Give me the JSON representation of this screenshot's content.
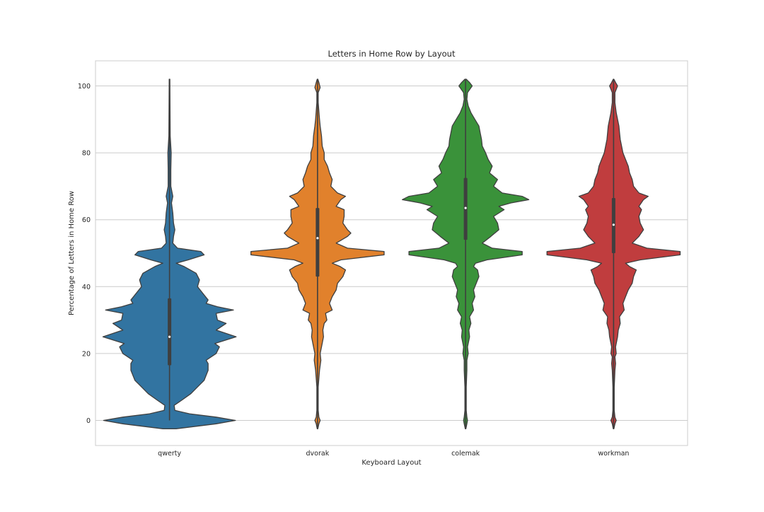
{
  "chart_data": {
    "type": "violin",
    "title": "Letters in Home Row by Layout",
    "xlabel": "Keyboard Layout",
    "ylabel": "Percentage of Letters in Home Row",
    "ylim": [
      -7.5,
      107.5
    ],
    "yticks": [
      0,
      20,
      40,
      60,
      80,
      100
    ],
    "grid": true,
    "categories": [
      "qwerty",
      "dvorak",
      "colemak",
      "workman"
    ],
    "colors": [
      "#3274a1",
      "#e1812c",
      "#3a923a",
      "#c03d3e"
    ],
    "box": {
      "qwerty": {
        "q1": 16.5,
        "median": 25,
        "q3": 36.5,
        "whisker_low": 0,
        "whisker_high": 102
      },
      "dvorak": {
        "q1": 43,
        "median": 54.5,
        "q3": 63.5,
        "whisker_low": -2.5,
        "whisker_high": 102
      },
      "colemak": {
        "q1": 54,
        "median": 63.5,
        "q3": 72.5,
        "whisker_low": -2.5,
        "whisker_high": 102
      },
      "workman": {
        "q1": 50,
        "median": 58.5,
        "q3": 66.5,
        "whisker_low": -2.5,
        "whisker_high": 102
      }
    },
    "density_profiles": {
      "qwerty": [
        [
          -2.5,
          0.1
        ],
        [
          -1,
          0.7
        ],
        [
          0,
          0.99
        ],
        [
          1,
          0.7
        ],
        [
          2,
          0.3
        ],
        [
          3,
          0.08
        ],
        [
          4.5,
          0.07
        ],
        [
          6,
          0.18
        ],
        [
          8,
          0.32
        ],
        [
          10,
          0.42
        ],
        [
          12,
          0.52
        ],
        [
          15,
          0.58
        ],
        [
          17,
          0.58
        ],
        [
          18,
          0.55
        ],
        [
          20,
          0.7
        ],
        [
          22,
          0.75
        ],
        [
          23,
          0.68
        ],
        [
          25,
          1.0
        ],
        [
          26,
          0.85
        ],
        [
          27,
          0.7
        ],
        [
          29,
          0.85
        ],
        [
          30,
          0.72
        ],
        [
          32,
          0.7
        ],
        [
          33,
          0.96
        ],
        [
          34,
          0.72
        ],
        [
          35,
          0.55
        ],
        [
          36,
          0.58
        ],
        [
          38,
          0.5
        ],
        [
          40,
          0.42
        ],
        [
          42,
          0.45
        ],
        [
          44,
          0.4
        ],
        [
          46,
          0.22
        ],
        [
          47,
          0.1
        ],
        [
          48,
          0.28
        ],
        [
          49.5,
          0.52
        ],
        [
          50.5,
          0.47
        ],
        [
          51.5,
          0.12
        ],
        [
          53,
          0.05
        ],
        [
          55,
          0.06
        ],
        [
          57,
          0.08
        ],
        [
          59,
          0.06
        ],
        [
          62,
          0.05
        ],
        [
          65,
          0.03
        ],
        [
          67,
          0.05
        ],
        [
          70,
          0.02
        ],
        [
          75,
          0.02
        ],
        [
          80,
          0.025
        ],
        [
          85,
          0.01
        ],
        [
          102,
          0.005
        ]
      ],
      "dvorak": [
        [
          -2.5,
          0.005
        ],
        [
          -1,
          0.02
        ],
        [
          0,
          0.04
        ],
        [
          1,
          0.02
        ],
        [
          3,
          0.01
        ],
        [
          10,
          0.01
        ],
        [
          15,
          0.03
        ],
        [
          18,
          0.05
        ],
        [
          20,
          0.04
        ],
        [
          22,
          0.06
        ],
        [
          25,
          0.09
        ],
        [
          27,
          0.08
        ],
        [
          29,
          0.1
        ],
        [
          30,
          0.14
        ],
        [
          32,
          0.12
        ],
        [
          33,
          0.22
        ],
        [
          35,
          0.18
        ],
        [
          37,
          0.22
        ],
        [
          39,
          0.28
        ],
        [
          41,
          0.3
        ],
        [
          43,
          0.38
        ],
        [
          45,
          0.42
        ],
        [
          46,
          0.34
        ],
        [
          47,
          0.22
        ],
        [
          48,
          0.35
        ],
        [
          49.5,
          1.0
        ],
        [
          50.5,
          1.0
        ],
        [
          51.5,
          0.45
        ],
        [
          53,
          0.28
        ],
        [
          55,
          0.45
        ],
        [
          56,
          0.5
        ],
        [
          57,
          0.45
        ],
        [
          59,
          0.38
        ],
        [
          61,
          0.4
        ],
        [
          63,
          0.4
        ],
        [
          64,
          0.28
        ],
        [
          66,
          0.35
        ],
        [
          67,
          0.42
        ],
        [
          68,
          0.3
        ],
        [
          70,
          0.2
        ],
        [
          72,
          0.22
        ],
        [
          74,
          0.18
        ],
        [
          76,
          0.15
        ],
        [
          78,
          0.1
        ],
        [
          80,
          0.1
        ],
        [
          82,
          0.07
        ],
        [
          85,
          0.06
        ],
        [
          88,
          0.04
        ],
        [
          90,
          0.03
        ],
        [
          95,
          0.01
        ],
        [
          98,
          0.01
        ],
        [
          99.5,
          0.04
        ],
        [
          101,
          0.02
        ],
        [
          102,
          0.005
        ]
      ],
      "colemak": [
        [
          -2.5,
          0.005
        ],
        [
          -1,
          0.02
        ],
        [
          0,
          0.03
        ],
        [
          1,
          0.02
        ],
        [
          3,
          0.01
        ],
        [
          10,
          0.01
        ],
        [
          15,
          0.02
        ],
        [
          18,
          0.02
        ],
        [
          20,
          0.04
        ],
        [
          22,
          0.03
        ],
        [
          25,
          0.06
        ],
        [
          27,
          0.05
        ],
        [
          29,
          0.08
        ],
        [
          31,
          0.06
        ],
        [
          33,
          0.12
        ],
        [
          35,
          0.1
        ],
        [
          37,
          0.14
        ],
        [
          39,
          0.12
        ],
        [
          41,
          0.16
        ],
        [
          43,
          0.2
        ],
        [
          45,
          0.18
        ],
        [
          46,
          0.12
        ],
        [
          47,
          0.15
        ],
        [
          48,
          0.32
        ],
        [
          49.5,
          0.85
        ],
        [
          50.5,
          0.85
        ],
        [
          51.5,
          0.4
        ],
        [
          53,
          0.25
        ],
        [
          55,
          0.38
        ],
        [
          57,
          0.5
        ],
        [
          59,
          0.48
        ],
        [
          61,
          0.42
        ],
        [
          63,
          0.58
        ],
        [
          64,
          0.5
        ],
        [
          65,
          0.68
        ],
        [
          66,
          0.95
        ],
        [
          67,
          0.85
        ],
        [
          68,
          0.55
        ],
        [
          70,
          0.42
        ],
        [
          72,
          0.48
        ],
        [
          74,
          0.36
        ],
        [
          76,
          0.4
        ],
        [
          78,
          0.34
        ],
        [
          80,
          0.3
        ],
        [
          82,
          0.25
        ],
        [
          84,
          0.24
        ],
        [
          86,
          0.22
        ],
        [
          88,
          0.2
        ],
        [
          90,
          0.14
        ],
        [
          92,
          0.08
        ],
        [
          94,
          0.04
        ],
        [
          96,
          0.02
        ],
        [
          98,
          0.03
        ],
        [
          100,
          0.1
        ],
        [
          101,
          0.06
        ],
        [
          102,
          0.01
        ]
      ],
      "workman": [
        [
          -2.5,
          0.005
        ],
        [
          -1,
          0.02
        ],
        [
          0,
          0.04
        ],
        [
          1,
          0.02
        ],
        [
          3,
          0.01
        ],
        [
          10,
          0.01
        ],
        [
          15,
          0.02
        ],
        [
          17,
          0.03
        ],
        [
          19,
          0.02
        ],
        [
          20,
          0.04
        ],
        [
          22,
          0.03
        ],
        [
          25,
          0.06
        ],
        [
          27,
          0.07
        ],
        [
          29,
          0.1
        ],
        [
          31,
          0.09
        ],
        [
          33,
          0.16
        ],
        [
          35,
          0.14
        ],
        [
          37,
          0.18
        ],
        [
          39,
          0.22
        ],
        [
          41,
          0.28
        ],
        [
          43,
          0.3
        ],
        [
          45,
          0.34
        ],
        [
          46,
          0.24
        ],
        [
          47,
          0.18
        ],
        [
          48,
          0.4
        ],
        [
          49.5,
          1.0
        ],
        [
          50.5,
          1.0
        ],
        [
          51.5,
          0.5
        ],
        [
          53,
          0.28
        ],
        [
          55,
          0.38
        ],
        [
          57,
          0.45
        ],
        [
          59,
          0.4
        ],
        [
          61,
          0.38
        ],
        [
          63,
          0.42
        ],
        [
          64,
          0.38
        ],
        [
          66,
          0.45
        ],
        [
          67,
          0.52
        ],
        [
          68,
          0.38
        ],
        [
          70,
          0.3
        ],
        [
          72,
          0.28
        ],
        [
          74,
          0.24
        ],
        [
          76,
          0.22
        ],
        [
          78,
          0.18
        ],
        [
          80,
          0.14
        ],
        [
          82,
          0.12
        ],
        [
          84,
          0.1
        ],
        [
          86,
          0.09
        ],
        [
          88,
          0.08
        ],
        [
          90,
          0.06
        ],
        [
          92,
          0.04
        ],
        [
          95,
          0.02
        ],
        [
          98,
          0.02
        ],
        [
          100,
          0.06
        ],
        [
          101,
          0.03
        ],
        [
          102,
          0.005
        ]
      ]
    }
  }
}
